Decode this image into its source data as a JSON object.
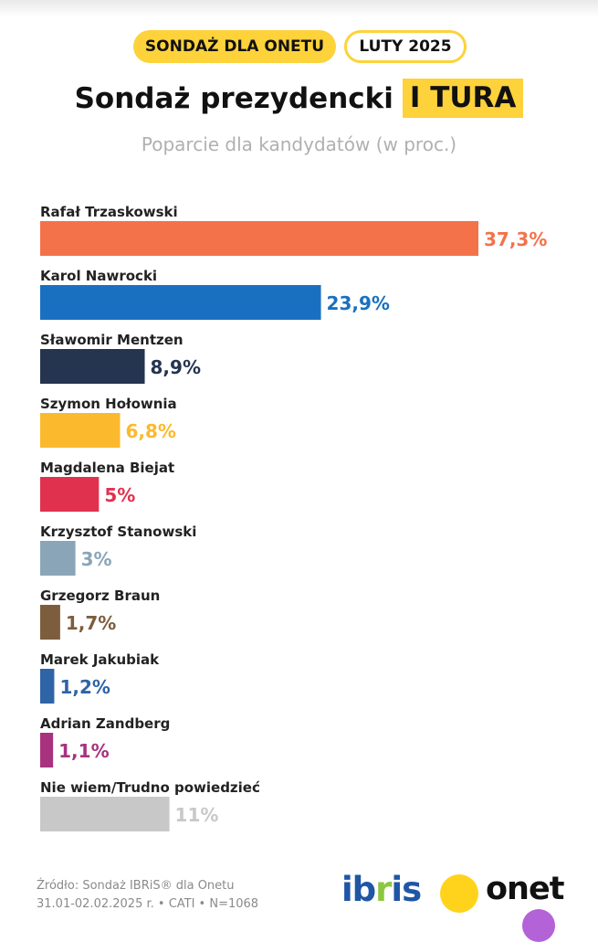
{
  "header": {
    "pill_left": "SONDAŻ DLA ONETU",
    "pill_right": "LUTY 2025",
    "title_main": "Sondaż prezydencki",
    "title_highlight": "I TURA",
    "subtitle": "Poparcie dla kandydatów (w proc.)"
  },
  "chart_data": {
    "type": "bar",
    "orientation": "horizontal",
    "title": "Sondaż prezydencki I TURA",
    "subtitle": "Poparcie dla kandydatów (w proc.)",
    "xlim": [
      0,
      37.3
    ],
    "grid": false,
    "legend": "none",
    "categories": [
      "Rafał Trzaskowski",
      "Karol Nawrocki",
      "Sławomir Mentzen",
      "Szymon Hołownia",
      "Magdalena Biejat",
      "Krzysztof Stanowski",
      "Grzegorz Braun",
      "Marek Jakubiak",
      "Adrian Zandberg",
      "Nie wiem/Trudno powiedzieć"
    ],
    "values": [
      37.3,
      23.9,
      8.9,
      6.8,
      5,
      3,
      1.7,
      1.2,
      1.1,
      11
    ],
    "value_labels": [
      "37,3%",
      "23,9%",
      "8,9%",
      "6,8%",
      "5%",
      "3%",
      "1,7%",
      "1,2%",
      "1,1%",
      "11%"
    ],
    "colors": [
      "#f4724a",
      "#1a70c0",
      "#25344f",
      "#fbb92e",
      "#e0324f",
      "#8aa5b8",
      "#7c5d3e",
      "#2f64a6",
      "#a8327f",
      "#c8c8c8"
    ]
  },
  "footer": {
    "source_line1": "Źródło: Sondaż IBRiS® dla Onetu",
    "source_line2": "31.01-02.02.2025 r. • CATI • N=1068"
  },
  "logos": {
    "ibris_a": "ib",
    "ibris_b": "r",
    "ibris_c": "is",
    "onet": "onet"
  }
}
